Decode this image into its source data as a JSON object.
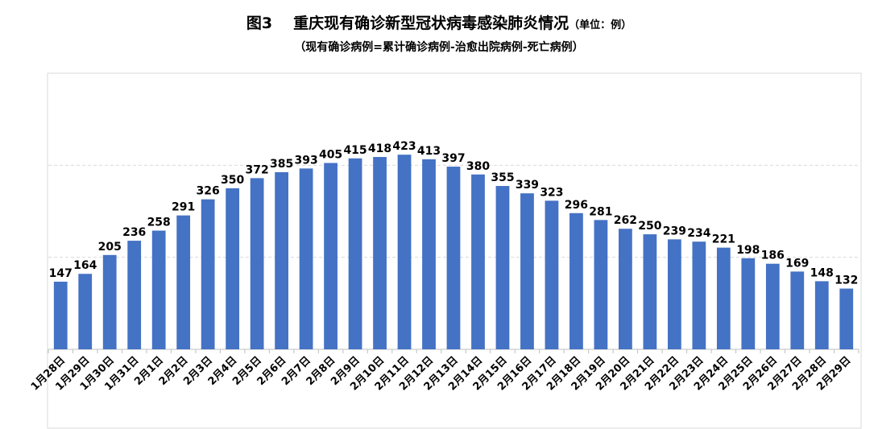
{
  "chart_data": {
    "type": "bar",
    "figure_label": "图3",
    "title": "重庆现有确诊新型冠状病毒感染肺炎情况",
    "unit_note": "（单位：例）",
    "subtitle": "（现有确诊病例=累计确诊病例-治愈出院病例-死亡病例）",
    "categories": [
      "1月28日",
      "1月29日",
      "1月30日",
      "1月31日",
      "2月1日",
      "2月2日",
      "2月3日",
      "2月4日",
      "2月5日",
      "2月6日",
      "2月7日",
      "2月8日",
      "2月9日",
      "2月10日",
      "2月11日",
      "2月12日",
      "2月13日",
      "2月14日",
      "2月15日",
      "2月16日",
      "2月17日",
      "2月18日",
      "2月19日",
      "2月20日",
      "2月21日",
      "2月22日",
      "2月23日",
      "2月24日",
      "2月25日",
      "2月26日",
      "2月27日",
      "2月28日",
      "2月29日"
    ],
    "values": [
      147,
      164,
      205,
      236,
      258,
      291,
      326,
      350,
      372,
      385,
      393,
      405,
      415,
      418,
      423,
      413,
      397,
      380,
      355,
      339,
      323,
      296,
      281,
      262,
      250,
      239,
      234,
      221,
      198,
      186,
      169,
      148,
      132
    ],
    "xlabel": "",
    "ylabel": "",
    "ylim": [
      0,
      600
    ],
    "y_gridlines": [
      200,
      400
    ],
    "y_tick_labels_shown": false,
    "grid": true,
    "legend": "none",
    "data_labels": true,
    "colors": {
      "bar": "#4472C4",
      "grid": "#D9D9D9",
      "axis": "#BFBFBF"
    }
  }
}
